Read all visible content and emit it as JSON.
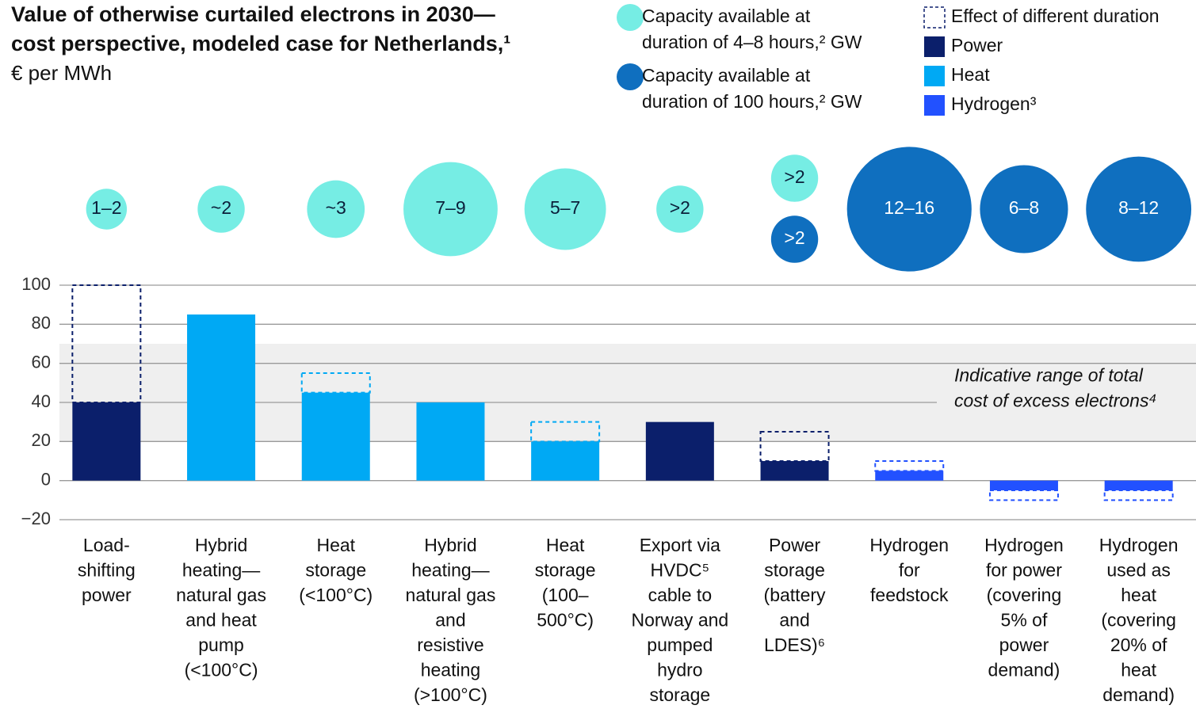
{
  "chart_data": {
    "type": "bar",
    "title": [
      "Value of otherwise curtailed electrons in 2030—",
      "cost perspective, modeled case for Netherlands,¹"
    ],
    "subtitle": "€ per MWh",
    "categories": [
      [
        "Load-",
        "shifting",
        "power"
      ],
      [
        "Hybrid",
        "heating—",
        "natural gas",
        "and heat",
        "pump",
        "(<100°C)"
      ],
      [
        "Heat",
        "storage",
        "(<100°C)"
      ],
      [
        "Hybrid",
        "heating—",
        "natural gas",
        "and",
        "resistive",
        "heating",
        "(>100°C)"
      ],
      [
        "Heat",
        "storage",
        "(100–",
        "500°C)"
      ],
      [
        "Export via",
        "HVDC⁵",
        "cable to",
        "Norway and",
        "pumped",
        "hydro",
        "storage"
      ],
      [
        "Power",
        "storage",
        "(battery",
        "and",
        "LDES)⁶"
      ],
      [
        "Hydrogen",
        "for",
        "feedstock"
      ],
      [
        "Hydrogen",
        "for power",
        "(covering",
        "5% of",
        "power",
        "demand)"
      ],
      [
        "Hydrogen",
        "used as",
        "heat",
        "(covering",
        "20% of",
        "heat",
        "demand)"
      ]
    ],
    "series": [
      {
        "name": "Power",
        "color": "#0b1f6b",
        "values": [
          40,
          null,
          null,
          null,
          null,
          30,
          10,
          null,
          null,
          null
        ]
      },
      {
        "name": "Heat",
        "color": "#00a9f4",
        "values": [
          null,
          85,
          45,
          40,
          20,
          null,
          null,
          null,
          null,
          null
        ]
      },
      {
        "name": "Hydrogen",
        "legend_label": "Hydrogen³",
        "color": "#2251ff",
        "values": [
          null,
          null,
          null,
          null,
          null,
          null,
          null,
          5,
          -5,
          -5
        ]
      }
    ],
    "ranges": {
      "name": "Effect of different duration",
      "values": [
        100,
        null,
        55,
        null,
        30,
        null,
        25,
        10,
        -10,
        -10
      ]
    },
    "bubbles": [
      {
        "name": [
          "Capacity available at",
          "duration of 4–8 hours,² GW"
        ],
        "color": "#76ede4",
        "text_color": "#0b1f3a",
        "sizes": [
          1.5,
          2,
          3,
          8,
          6,
          2,
          2,
          null,
          null,
          null
        ],
        "value_labels": [
          "1–2",
          "~2",
          "~3",
          "7–9",
          "5–7",
          ">2",
          ">2",
          null,
          null,
          null
        ]
      },
      {
        "name": [
          "Capacity available at",
          "duration of 100 hours,² GW"
        ],
        "color": "#0f6fbf",
        "text_color": "#ffffff",
        "sizes": [
          null,
          null,
          null,
          null,
          null,
          null,
          2,
          14,
          7,
          10
        ],
        "value_labels": [
          null,
          null,
          null,
          null,
          null,
          null,
          ">2",
          "12–16",
          "6–8",
          "8–12"
        ]
      }
    ],
    "annotation": {
      "text": [
        "Indicative range of total",
        "cost of excess electrons⁴"
      ],
      "band": [
        20,
        70
      ],
      "color": "#efefef"
    },
    "ylim": [
      -20,
      100
    ],
    "yticks": [
      {
        "value": -20,
        "label": "−20"
      },
      0,
      20,
      40,
      60,
      80,
      100
    ],
    "grid": true
  }
}
